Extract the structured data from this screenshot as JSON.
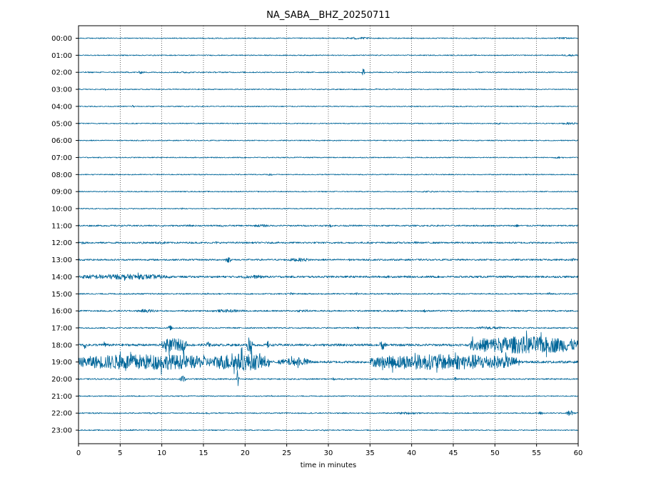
{
  "chart_data": {
    "type": "line",
    "subtype": "seismogram-helicorder",
    "title": "NA_SABA__BHZ_20250711",
    "xlabel": "time in minutes",
    "ylabel": "",
    "xlim": [
      0,
      60
    ],
    "x_ticks": [
      0,
      5,
      10,
      15,
      20,
      25,
      30,
      35,
      40,
      45,
      50,
      55,
      60
    ],
    "x_tick_labels": [
      "0",
      "5",
      "10",
      "15",
      "20",
      "25",
      "30",
      "35",
      "40",
      "45",
      "50",
      "55",
      "60"
    ],
    "grid": {
      "vertical_dotted_at_minutes": [
        5,
        10,
        15,
        20,
        25,
        30,
        35,
        40,
        45,
        50,
        55
      ]
    },
    "trace_color": "#006699",
    "rows": [
      {
        "label": "00:00",
        "noise": 0.06,
        "bursts": [
          [
            32,
            35,
            0.14
          ],
          [
            57,
            59,
            0.12
          ]
        ]
      },
      {
        "label": "01:00",
        "noise": 0.06,
        "bursts": [
          [
            58,
            60,
            0.12
          ]
        ]
      },
      {
        "label": "02:00",
        "noise": 0.07,
        "bursts": [
          [
            7,
            8,
            0.18
          ],
          [
            12,
            13.5,
            0.12
          ],
          [
            34,
            34.4,
            0.5
          ]
        ]
      },
      {
        "label": "03:00",
        "noise": 0.06,
        "bursts": [
          [
            3,
            3.5,
            0.12
          ],
          [
            35.5,
            36,
            0.1
          ]
        ]
      },
      {
        "label": "04:00",
        "noise": 0.06,
        "bursts": [
          [
            6.3,
            6.8,
            0.22
          ]
        ]
      },
      {
        "label": "05:00",
        "noise": 0.06,
        "bursts": [
          [
            50,
            51,
            0.14
          ],
          [
            58,
            60,
            0.14
          ]
        ]
      },
      {
        "label": "06:00",
        "noise": 0.06,
        "bursts": []
      },
      {
        "label": "07:00",
        "noise": 0.06,
        "bursts": [
          [
            57,
            58.5,
            0.12
          ]
        ]
      },
      {
        "label": "08:00",
        "noise": 0.06,
        "bursts": [
          [
            22.5,
            23.5,
            0.14
          ]
        ]
      },
      {
        "label": "09:00",
        "noise": 0.06,
        "bursts": [
          [
            41,
            43,
            0.1
          ]
        ]
      },
      {
        "label": "10:00",
        "noise": 0.06,
        "bursts": [
          [
            12,
            13,
            0.1
          ],
          [
            47,
            48,
            0.1
          ]
        ]
      },
      {
        "label": "11:00",
        "noise": 0.09,
        "bursts": [
          [
            13,
            14,
            0.14
          ],
          [
            17,
            17.5,
            0.2
          ],
          [
            21,
            23,
            0.16
          ],
          [
            30,
            30.5,
            0.2
          ],
          [
            52,
            53,
            0.2
          ]
        ]
      },
      {
        "label": "12:00",
        "noise": 0.1,
        "bursts": [
          [
            0,
            1,
            0.2
          ],
          [
            7.5,
            8,
            0.22
          ],
          [
            9,
            11,
            0.16
          ],
          [
            16,
            17,
            0.16
          ],
          [
            40,
            41,
            0.16
          ]
        ]
      },
      {
        "label": "13:00",
        "noise": 0.1,
        "bursts": [
          [
            17.5,
            18.5,
            0.35
          ],
          [
            25,
            28,
            0.22
          ],
          [
            32,
            33,
            0.16
          ],
          [
            59,
            60,
            0.2
          ]
        ]
      },
      {
        "label": "14:00",
        "noise": 0.12,
        "bursts": [
          [
            0,
            11,
            0.32
          ],
          [
            19.5,
            22.5,
            0.22
          ],
          [
            36,
            38,
            0.14
          ]
        ]
      },
      {
        "label": "15:00",
        "noise": 0.08,
        "bursts": [
          [
            15,
            16,
            0.14
          ],
          [
            25,
            26,
            0.2
          ],
          [
            33,
            34,
            0.16
          ],
          [
            56,
            57,
            0.2
          ]
        ]
      },
      {
        "label": "16:00",
        "noise": 0.09,
        "bursts": [
          [
            7,
            9.5,
            0.2
          ],
          [
            16,
            20,
            0.18
          ],
          [
            26,
            28,
            0.16
          ],
          [
            41,
            42,
            0.18
          ]
        ]
      },
      {
        "label": "17:00",
        "noise": 0.08,
        "bursts": [
          [
            10.5,
            11.5,
            0.3
          ],
          [
            33,
            34,
            0.16
          ],
          [
            48,
            51,
            0.18
          ]
        ]
      },
      {
        "label": "18:00",
        "noise": 0.14,
        "bursts": [
          [
            0.5,
            1,
            0.5
          ],
          [
            3,
            3.3,
            0.7
          ],
          [
            10,
            13,
            0.8
          ],
          [
            15,
            16,
            0.4
          ],
          [
            20,
            21,
            0.8
          ],
          [
            22.5,
            23,
            0.5
          ],
          [
            36,
            37,
            0.6
          ],
          [
            47,
            60,
            1.05
          ]
        ]
      },
      {
        "label": "19:00",
        "noise": 0.14,
        "bursts": [
          [
            0,
            16,
            0.95
          ],
          [
            16,
            23,
            1.05
          ],
          [
            24,
            28,
            0.45
          ],
          [
            35,
            53,
            0.95
          ]
        ]
      },
      {
        "label": "20:00",
        "noise": 0.08,
        "bursts": [
          [
            12,
            13,
            0.4
          ],
          [
            19,
            19.3,
            1.9
          ],
          [
            30,
            31,
            0.16
          ],
          [
            45,
            45.5,
            0.22
          ]
        ]
      },
      {
        "label": "21:00",
        "noise": 0.06,
        "bursts": [
          [
            23,
            23.3,
            0.16
          ]
        ]
      },
      {
        "label": "22:00",
        "noise": 0.07,
        "bursts": [
          [
            8,
            10,
            0.1
          ],
          [
            15,
            16,
            0.14
          ],
          [
            38,
            41,
            0.14
          ],
          [
            55,
            56,
            0.2
          ],
          [
            58.5,
            59.5,
            0.4
          ]
        ]
      },
      {
        "label": "23:00",
        "noise": 0.06,
        "bursts": [
          [
            6,
            7,
            0.12
          ],
          [
            29,
            30,
            0.1
          ]
        ]
      }
    ]
  }
}
